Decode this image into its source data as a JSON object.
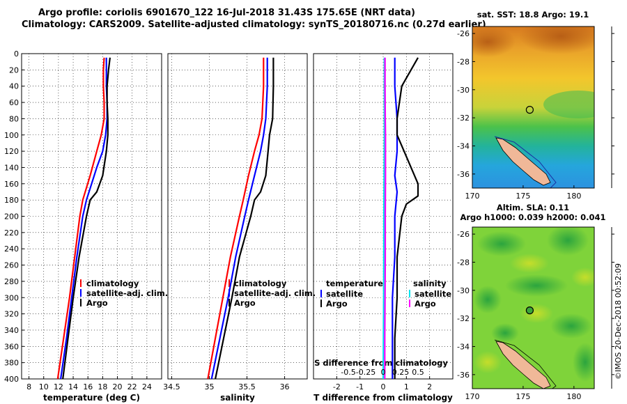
{
  "header": {
    "line1": "Argo profile: coriolis 6901670_122 16-Jul-2018 31.43S 175.65E (NRT data)",
    "line2": "Climatology: CARS2009. Satellite-adjusted climatology: synTS_20180716.nc (0.27d earlier)"
  },
  "colors": {
    "argo": "#000000",
    "sat": "#0000ff",
    "clim": "#ff0000",
    "sat_s": "#00e5ee",
    "clim_s": "#ff00ff"
  },
  "chart_data": [
    {
      "type": "line",
      "name": "temperature-profile",
      "xlabel": "temperature (deg C)",
      "ylabel": "",
      "xlim": [
        7,
        26
      ],
      "ylim": [
        400,
        0
      ],
      "xticks": [
        8,
        10,
        12,
        14,
        16,
        18,
        20,
        22,
        24
      ],
      "yticks": [
        0,
        20,
        40,
        60,
        80,
        100,
        120,
        140,
        160,
        180,
        200,
        220,
        240,
        260,
        280,
        300,
        320,
        340,
        360,
        380,
        400
      ],
      "series": [
        {
          "name": "climatology",
          "color": "#ff0000",
          "depth": [
            5,
            20,
            40,
            60,
            80,
            100,
            120,
            150,
            180,
            200,
            250,
            300,
            350,
            400
          ],
          "values": [
            18.2,
            18.1,
            18.1,
            18.2,
            18.2,
            17.8,
            17.2,
            16.3,
            15.3,
            14.9,
            14.2,
            13.5,
            12.7,
            11.9
          ]
        },
        {
          "name": "satellite-adj. clim.",
          "color": "#0000ff",
          "depth": [
            5,
            20,
            40,
            60,
            80,
            100,
            120,
            140,
            160,
            180,
            200,
            250,
            300,
            350,
            400
          ],
          "values": [
            18.5,
            18.5,
            18.5,
            18.6,
            18.6,
            18.4,
            18.0,
            17.2,
            16.5,
            15.8,
            15.3,
            14.5,
            13.8,
            13.1,
            12.3
          ]
        },
        {
          "name": "Argo",
          "color": "#000000",
          "depth": [
            5,
            20,
            40,
            60,
            80,
            100,
            120,
            150,
            170,
            180,
            200,
            250,
            300,
            350,
            400
          ],
          "values": [
            19.0,
            18.8,
            18.6,
            18.6,
            18.7,
            18.7,
            18.5,
            18.0,
            17.2,
            16.3,
            15.8,
            14.8,
            14.0,
            13.3,
            12.6
          ]
        }
      ],
      "legend": [
        "climatology",
        "satellite-adj. clim.",
        "Argo"
      ]
    },
    {
      "type": "line",
      "name": "salinity-profile",
      "xlabel": "salinity",
      "xlim": [
        34.45,
        36.3
      ],
      "ylim": [
        400,
        0
      ],
      "xticks": [
        34.5,
        35,
        35.5,
        36
      ],
      "series": [
        {
          "name": "climatology",
          "color": "#ff0000",
          "depth": [
            5,
            40,
            80,
            100,
            120,
            150,
            180,
            200,
            250,
            300,
            350,
            400
          ],
          "values": [
            35.72,
            35.72,
            35.7,
            35.66,
            35.6,
            35.52,
            35.45,
            35.4,
            35.28,
            35.18,
            35.08,
            34.98
          ]
        },
        {
          "name": "satellite-adj. clim.",
          "color": "#0000ff",
          "depth": [
            5,
            40,
            80,
            100,
            120,
            150,
            180,
            200,
            250,
            300,
            350,
            400
          ],
          "values": [
            35.77,
            35.77,
            35.75,
            35.72,
            35.68,
            35.6,
            35.52,
            35.47,
            35.35,
            35.25,
            35.14,
            35.03
          ]
        },
        {
          "name": "Argo",
          "color": "#000000",
          "depth": [
            5,
            40,
            80,
            100,
            120,
            150,
            170,
            180,
            200,
            250,
            300,
            350,
            400
          ],
          "values": [
            35.85,
            35.85,
            35.84,
            35.8,
            35.78,
            35.75,
            35.68,
            35.6,
            35.55,
            35.4,
            35.3,
            35.19,
            35.08
          ]
        }
      ],
      "legend": [
        "climatology",
        "satellite-adj. clim.",
        "Argo"
      ]
    },
    {
      "type": "line",
      "name": "difference-profile",
      "xlabel": "T difference from climatology",
      "top_label": "S difference from climatology",
      "xlim": [
        -3,
        3
      ],
      "ylim": [
        400,
        0
      ],
      "xticks": [
        -2,
        -1,
        0,
        1,
        2
      ],
      "top_ticks": [
        "-0.5",
        "-0.25",
        "0",
        "0.25",
        "0.5"
      ],
      "series": [
        {
          "name": "temperature satellite",
          "color": "#0000ff",
          "depth": [
            5,
            40,
            80,
            100,
            120,
            150,
            170,
            200,
            250,
            300,
            350,
            400
          ],
          "values": [
            0.5,
            0.5,
            0.6,
            0.6,
            0.6,
            0.5,
            0.6,
            0.5,
            0.5,
            0.4,
            0.4,
            0.4
          ]
        },
        {
          "name": "temperature Argo",
          "color": "#000000",
          "depth": [
            5,
            20,
            40,
            60,
            80,
            100,
            120,
            140,
            160,
            175,
            185,
            200,
            250,
            300,
            350,
            400
          ],
          "values": [
            1.5,
            1.2,
            0.8,
            0.7,
            0.6,
            0.6,
            0.9,
            1.2,
            1.5,
            1.5,
            1.0,
            0.8,
            0.6,
            0.6,
            0.5,
            0.5
          ]
        },
        {
          "name": "salinity satellite",
          "color": "#00e5ee",
          "depth": [
            5,
            100,
            200,
            300,
            400
          ],
          "values": [
            0.05,
            0.05,
            0.03,
            0.02,
            0.0
          ]
        },
        {
          "name": "salinity Argo",
          "color": "#ff00ff",
          "depth": [
            5,
            40,
            80,
            100,
            150,
            200,
            250,
            300,
            350,
            400
          ],
          "values": [
            0.08,
            0.08,
            0.09,
            0.1,
            0.1,
            0.09,
            0.09,
            0.08,
            0.07,
            0.07
          ]
        }
      ],
      "legend_temperature": {
        "title": "temperature",
        "items": [
          "satellite",
          "Argo"
        ]
      },
      "legend_salinity": {
        "title": "salinity",
        "items": [
          "satellite",
          "Argo"
        ]
      }
    },
    {
      "type": "heatmap",
      "name": "sst-map",
      "title": "sat. SST: 18.8 Argo: 19.1",
      "xlim": [
        170,
        182
      ],
      "ylim": [
        -37,
        -25.5
      ],
      "xticks": [
        170,
        175,
        180
      ],
      "yticks": [
        -26,
        -28,
        -30,
        -32,
        -34,
        -36
      ],
      "marker": {
        "lon": 175.65,
        "lat": -31.43
      }
    },
    {
      "type": "heatmap",
      "name": "sla-map",
      "title": "Altim. SLA: 0.11",
      "subtitle": "Argo h1000: 0.039 h2000: 0.041",
      "xlim": [
        170,
        182
      ],
      "ylim": [
        -37,
        -25.5
      ],
      "xticks": [
        170,
        175,
        180
      ],
      "yticks": [
        -26,
        -28,
        -30,
        -32,
        -34,
        -36
      ],
      "marker": {
        "lon": 175.65,
        "lat": -31.43
      }
    }
  ],
  "footer": {
    "credit": "©IMOS 20-Dec-2018 00:52:09"
  }
}
